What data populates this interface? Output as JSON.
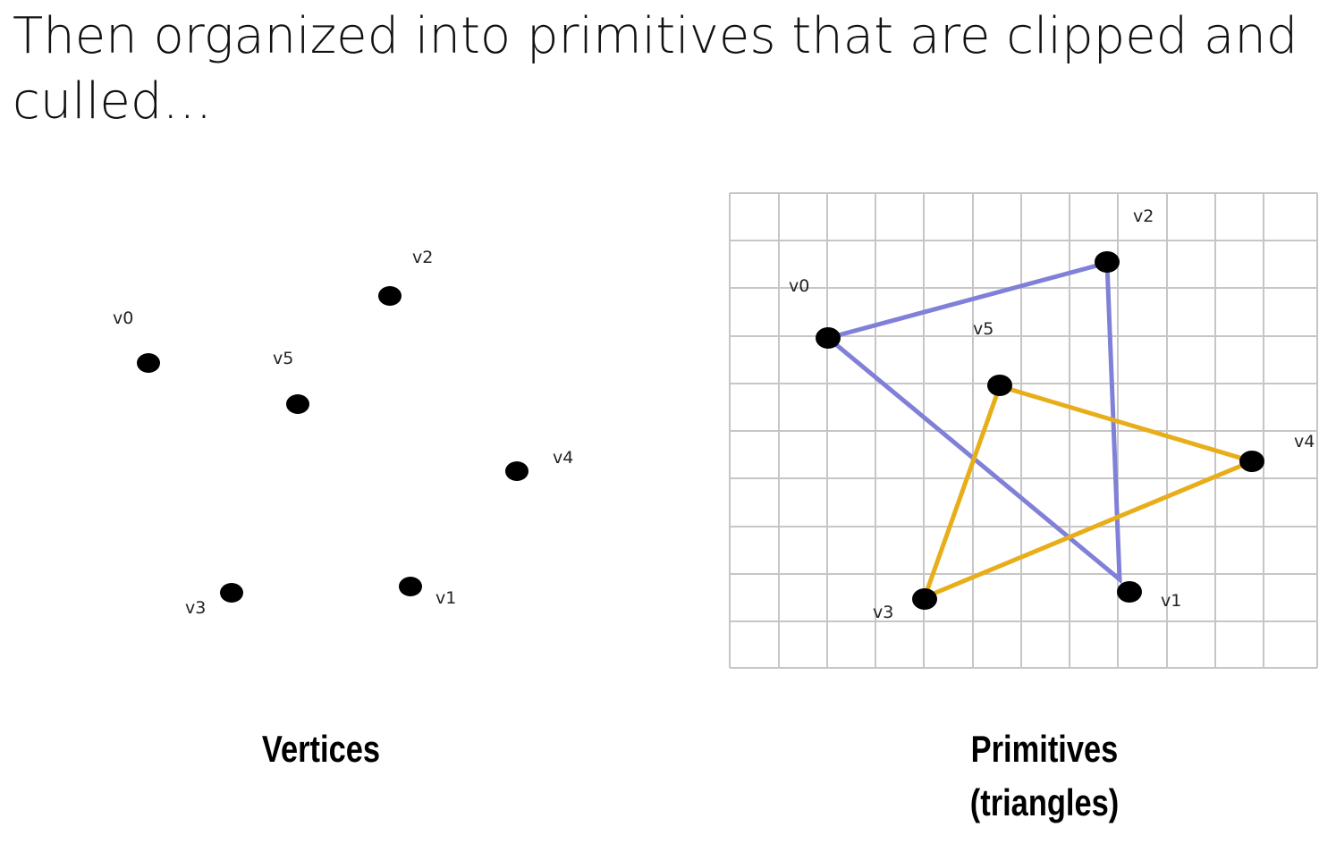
{
  "title": "Then organized into primitives that are clipped and culled…",
  "captions": {
    "left": "Vertices",
    "right_line1": "Primitives",
    "right_line2": "(triangles)"
  },
  "vertex_labels": [
    "v0",
    "v1",
    "v2",
    "v3",
    "v4",
    "v5"
  ],
  "triangles": [
    {
      "vertices": [
        "v0",
        "v2",
        "v1"
      ],
      "color": "#8080d8"
    },
    {
      "vertices": [
        "v5",
        "v4",
        "v3"
      ],
      "color": "#e8ae1a"
    }
  ],
  "colors": {
    "vertex": "#000000",
    "grid": "#c6c6c6"
  }
}
